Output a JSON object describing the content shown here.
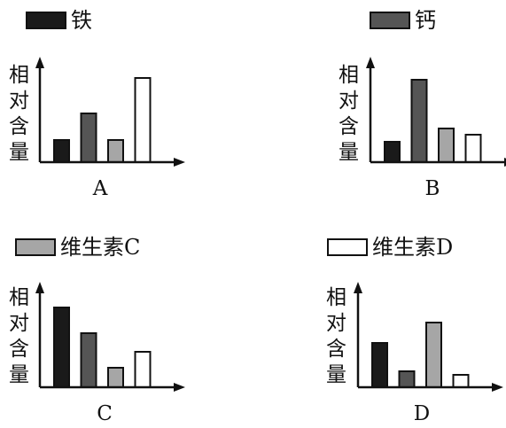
{
  "legend": [
    {
      "label": "铁",
      "color": "#1a1a1a"
    },
    {
      "label": "钙",
      "color": "#555555"
    },
    {
      "label": "维生素C",
      "color": "#a6a6a6"
    },
    {
      "label": "维生素D",
      "color": "#ffffff"
    }
  ],
  "chart_data": [
    {
      "type": "bar",
      "title": "A",
      "ylabel": "相对含量",
      "categories": [
        "铁",
        "钙",
        "维生素C",
        "维生素D"
      ],
      "values": [
        2.5,
        5.5,
        2.5,
        9.5
      ],
      "ylim": [
        0,
        12
      ],
      "grid": false,
      "legend": "above"
    },
    {
      "type": "bar",
      "title": "B",
      "ylabel": "相对含量",
      "categories": [
        "铁",
        "钙",
        "维生素C",
        "维生素D"
      ],
      "values": [
        2.3,
        9.3,
        3.8,
        3.1
      ],
      "ylim": [
        0,
        12
      ],
      "grid": false,
      "legend": "above"
    },
    {
      "type": "bar",
      "title": "C",
      "ylabel": "相对含量",
      "categories": [
        "铁",
        "钙",
        "维生素C",
        "维生素D"
      ],
      "values": [
        9.0,
        6.1,
        2.2,
        4.0
      ],
      "ylim": [
        0,
        12
      ],
      "grid": false,
      "legend": "above"
    },
    {
      "type": "bar",
      "title": "D",
      "ylabel": "相对含量",
      "categories": [
        "铁",
        "钙",
        "维生素C",
        "维生素D"
      ],
      "values": [
        5.0,
        1.8,
        7.3,
        1.4
      ],
      "ylim": [
        0,
        12
      ],
      "grid": false,
      "legend": "above"
    }
  ]
}
